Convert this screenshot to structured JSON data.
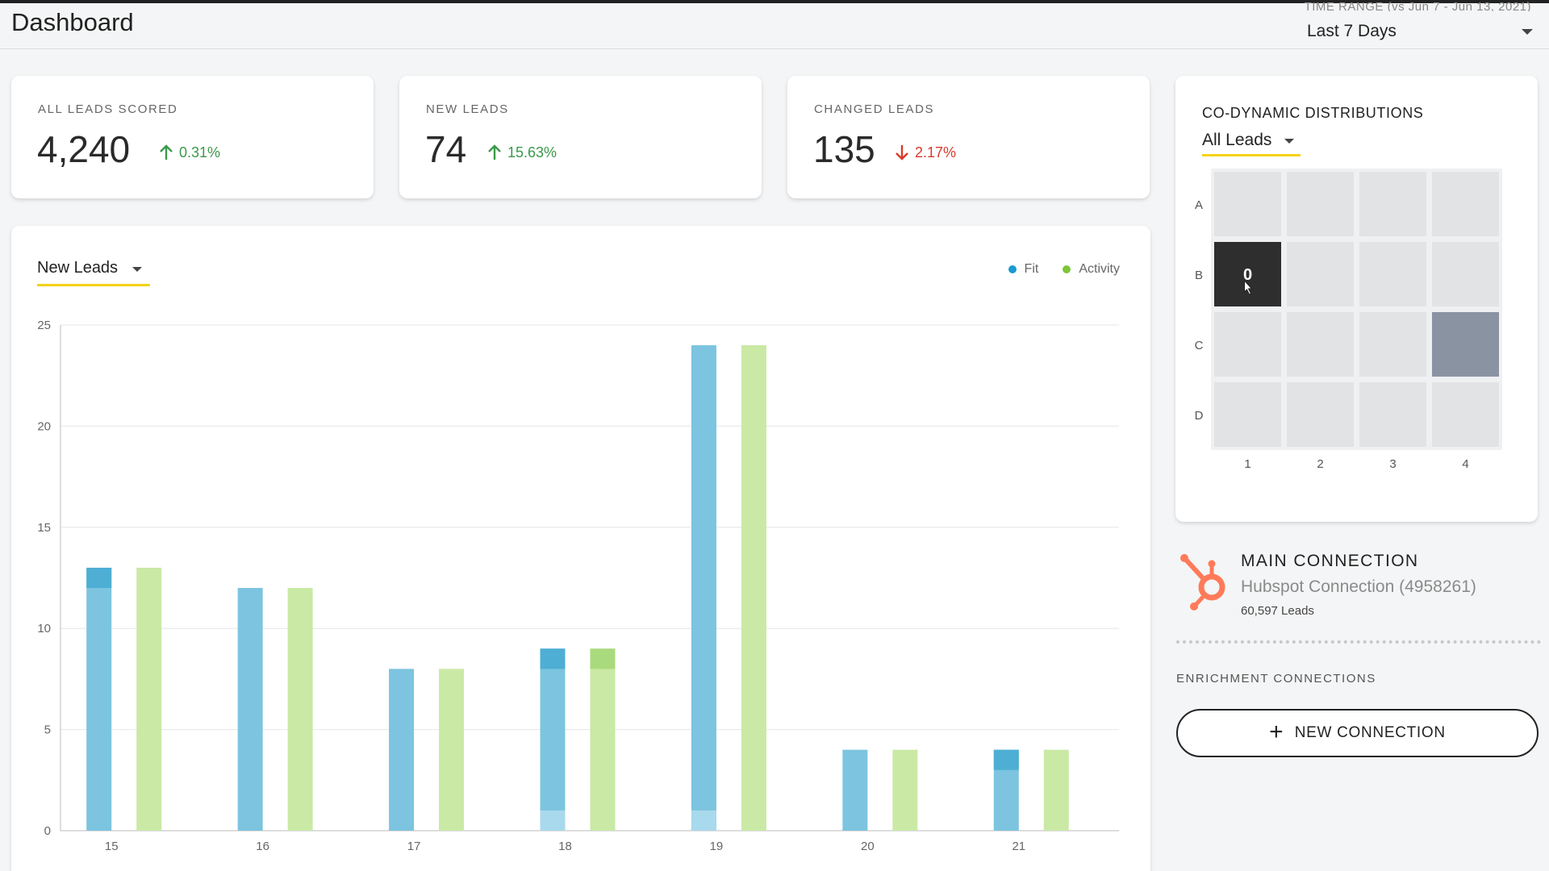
{
  "header": {
    "title": "Dashboard",
    "time_range_caption": "TIME RANGE (vs Jun 7 - Jun 13, 2021)",
    "time_range_value": "Last 7 Days"
  },
  "stats": [
    {
      "label": "ALL LEADS SCORED",
      "value": "4,240",
      "change": "0.31%",
      "direction": "up"
    },
    {
      "label": "NEW LEADS",
      "value": "74",
      "change": "15.63%",
      "direction": "up"
    },
    {
      "label": "CHANGED LEADS",
      "value": "135",
      "change": "2.17%",
      "direction": "down"
    }
  ],
  "chart_panel": {
    "metric": "New Leads",
    "legend": [
      {
        "name": "Fit",
        "color": "#1b9bd1"
      },
      {
        "name": "Activity",
        "color": "#7dc63a"
      }
    ]
  },
  "chart_data": {
    "type": "bar",
    "categories": [
      "15",
      "16",
      "17",
      "18",
      "19",
      "20",
      "21"
    ],
    "series": [
      {
        "name": "Fit",
        "values": [
          13,
          12,
          8,
          9,
          24,
          4,
          4
        ]
      },
      {
        "name": "Activity",
        "values": [
          13,
          12,
          8,
          9,
          24,
          4,
          4
        ]
      }
    ],
    "ylim": [
      0,
      25
    ],
    "yticks": [
      0,
      5,
      10,
      15,
      20,
      25
    ],
    "grid": true,
    "legend_position": "top-right",
    "colors": {
      "fit": "#7cc4df",
      "fit_dark": "#4eaed4",
      "fit_light": "#a8d9ec",
      "activity": "#cae9a5",
      "activity_dark": "#a9da7c"
    }
  },
  "distributions": {
    "title": "CO-DYNAMIC DISTRIBUTIONS",
    "filter": "All Leads",
    "rows": [
      "A",
      "B",
      "C",
      "D"
    ],
    "cols": [
      "1",
      "2",
      "3",
      "4"
    ],
    "cells": [
      [
        "",
        "",
        "",
        ""
      ],
      [
        "0",
        "",
        "",
        ""
      ],
      [
        "",
        "",
        "",
        ""
      ],
      [
        "",
        "",
        "",
        ""
      ]
    ],
    "levels": [
      [
        0,
        0,
        0,
        0
      ],
      [
        1,
        0,
        0,
        0
      ],
      [
        0,
        0,
        0,
        0.45
      ],
      [
        0,
        0,
        0,
        0
      ]
    ],
    "selected": {
      "row": "B",
      "col": "1"
    },
    "colors": {
      "empty": "#e1e3e5",
      "filled": "#8a93a2",
      "selected": "#2e2e2e"
    }
  },
  "connection": {
    "title": "MAIN CONNECTION",
    "name": "Hubspot Connection (4958261)",
    "count": "60,597 Leads",
    "icon": "hubspot-icon",
    "icon_color": "#ff7a59"
  },
  "enrichment": {
    "label": "ENRICHMENT CONNECTIONS",
    "button": "NEW CONNECTION"
  }
}
